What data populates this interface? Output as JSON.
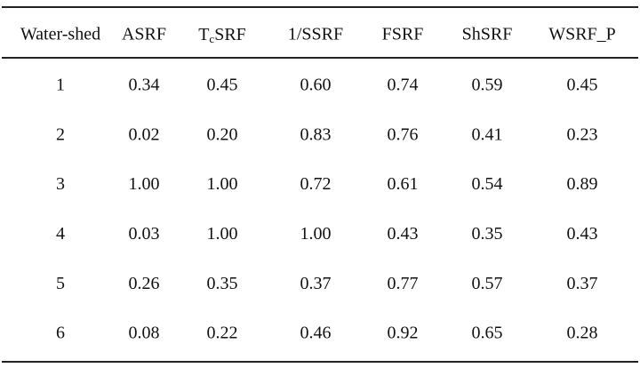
{
  "table": {
    "header": [
      "Water-shed",
      "ASRF",
      {
        "main": "T",
        "subscript": "c",
        "suffix": "SRF"
      },
      "1/SSRF",
      "FSRF",
      "ShSRF",
      "WSRF_P"
    ],
    "rows": [
      [
        "1",
        "0.34",
        "0.45",
        "0.60",
        "0.74",
        "0.59",
        "0.45"
      ],
      [
        "2",
        "0.02",
        "0.20",
        "0.83",
        "0.76",
        "0.41",
        "0.23"
      ],
      [
        "3",
        "1.00",
        "1.00",
        "0.72",
        "0.61",
        "0.54",
        "0.89"
      ],
      [
        "4",
        "0.03",
        "1.00",
        "1.00",
        "0.43",
        "0.35",
        "0.43"
      ],
      [
        "5",
        "0.26",
        "0.35",
        "0.37",
        "0.77",
        "0.57",
        "0.37"
      ],
      [
        "6",
        "0.08",
        "0.22",
        "0.46",
        "0.92",
        "0.65",
        "0.28"
      ]
    ]
  }
}
